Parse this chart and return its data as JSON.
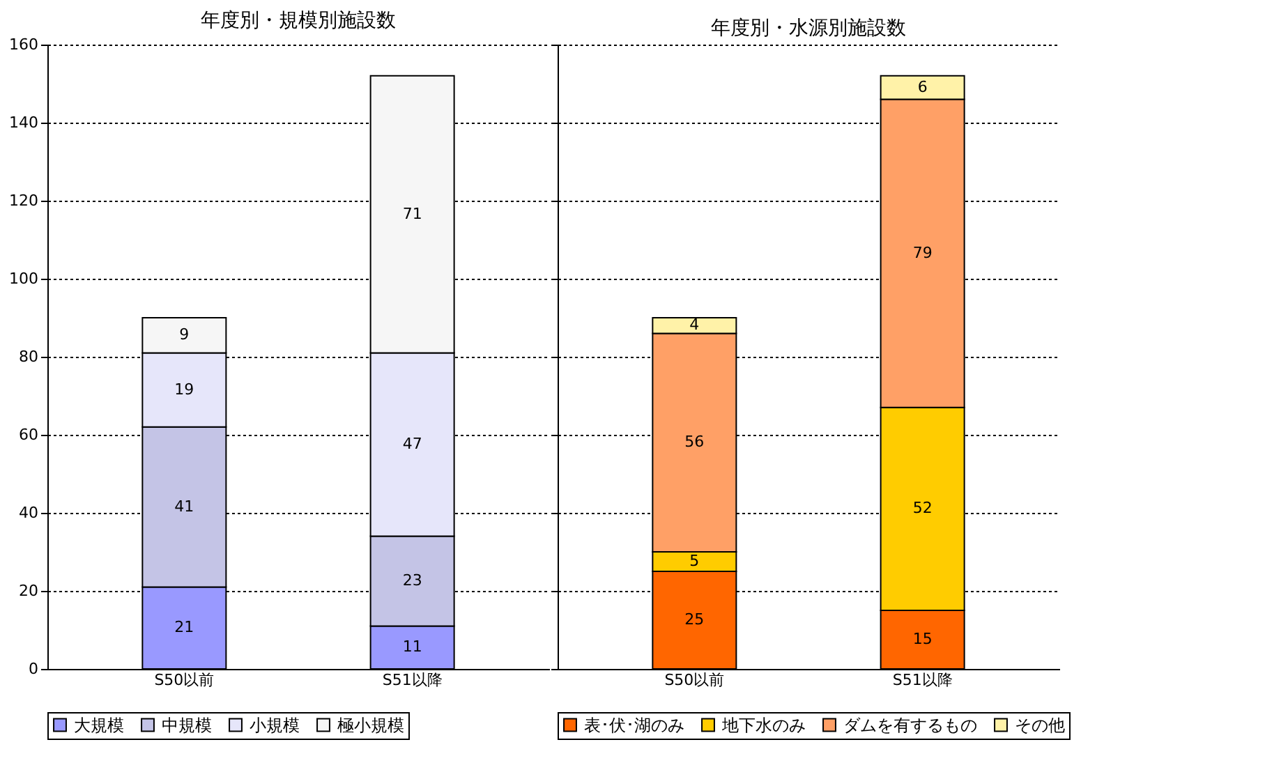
{
  "chart_data": [
    {
      "type": "bar",
      "title": "年度別・規模別施設数",
      "categories": [
        "S50以前",
        "S51以降"
      ],
      "stacked": true,
      "ylim": [
        0,
        160
      ],
      "yticks": [
        0,
        20,
        40,
        60,
        80,
        100,
        120,
        140,
        160
      ],
      "grid": "y",
      "legend": "bottom",
      "data_labels": true,
      "series": [
        {
          "name": "大規模",
          "color": "#9999ff",
          "values": [
            21,
            11
          ]
        },
        {
          "name": "中規模",
          "color": "#c4c4e6",
          "values": [
            41,
            23
          ]
        },
        {
          "name": "小規模",
          "color": "#e6e6fa",
          "values": [
            19,
            47
          ]
        },
        {
          "name": "極小規模",
          "color": "#f6f6f6",
          "values": [
            9,
            71
          ]
        }
      ]
    },
    {
      "type": "bar",
      "title": "年度別・水源別施設数",
      "categories": [
        "S50以前",
        "S51以降"
      ],
      "stacked": true,
      "ylim": [
        0,
        160
      ],
      "yticks": [
        0,
        20,
        40,
        60,
        80,
        100,
        120,
        140,
        160
      ],
      "tick_labels": "x",
      "grid": "y",
      "legend": "bottom",
      "data_labels": true,
      "series": [
        {
          "name": "表･伏･湖のみ",
          "color": "#ff6600",
          "values": [
            25,
            15
          ]
        },
        {
          "name": "地下水のみ",
          "color": "#ffcc00",
          "values": [
            5,
            52
          ]
        },
        {
          "name": "ダムを有するもの",
          "color": "#ffa066",
          "values": [
            56,
            79
          ]
        },
        {
          "name": "その他",
          "color": "#fff2a8",
          "values": [
            4,
            6
          ]
        }
      ]
    }
  ]
}
